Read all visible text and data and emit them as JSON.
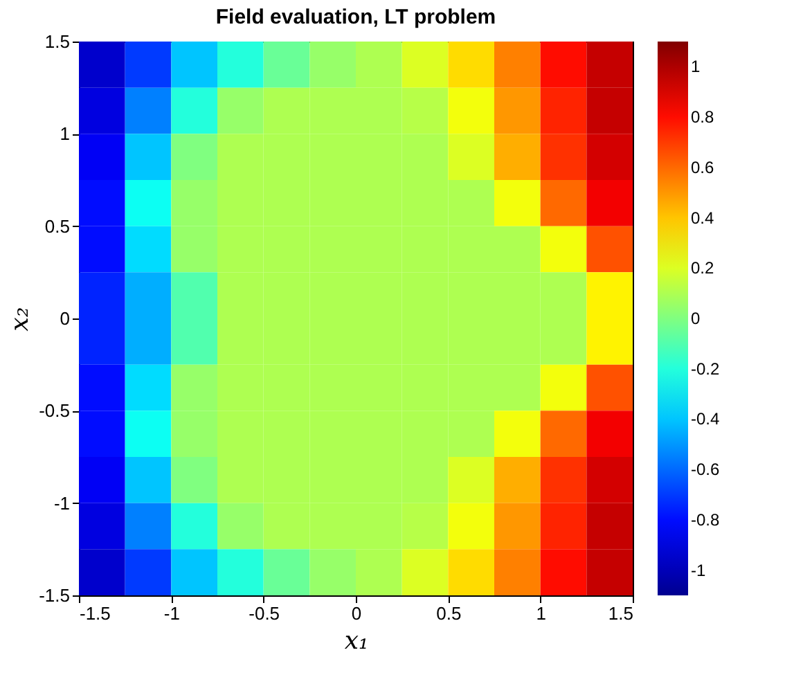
{
  "chart_data": {
    "type": "heatmap",
    "title": "Field evaluation, LT problem",
    "xlabel": "x₁",
    "ylabel": "x₂",
    "x": [
      -1.375,
      -1.125,
      -0.875,
      -0.625,
      -0.375,
      -0.125,
      0.125,
      0.375,
      0.625,
      0.875,
      1.125,
      1.375
    ],
    "y": [
      1.375,
      1.125,
      0.875,
      0.625,
      0.375,
      0.125,
      -0.125,
      -0.375,
      -0.625,
      -0.875,
      -1.125,
      -1.375
    ],
    "cells": [
      [
        -0.95,
        -0.7,
        -0.4,
        -0.2,
        -0.05,
        0.05,
        0.1,
        0.2,
        0.35,
        0.55,
        0.8,
        0.95
      ],
      [
        -0.9,
        -0.55,
        -0.2,
        0.05,
        0.1,
        0.1,
        0.1,
        0.12,
        0.25,
        0.5,
        0.75,
        0.95
      ],
      [
        -0.85,
        -0.4,
        0.0,
        0.1,
        0.1,
        0.1,
        0.1,
        0.1,
        0.2,
        0.45,
        0.72,
        0.92
      ],
      [
        -0.8,
        -0.25,
        0.05,
        0.1,
        0.1,
        0.1,
        0.1,
        0.1,
        0.1,
        0.25,
        0.6,
        0.85
      ],
      [
        -0.8,
        -0.35,
        0.05,
        0.1,
        0.1,
        0.1,
        0.1,
        0.1,
        0.1,
        0.1,
        0.25,
        0.65
      ],
      [
        -0.75,
        -0.45,
        -0.1,
        0.1,
        0.1,
        0.1,
        0.1,
        0.1,
        0.1,
        0.1,
        0.1,
        0.3
      ],
      [
        -0.75,
        -0.45,
        -0.1,
        0.1,
        0.1,
        0.1,
        0.1,
        0.1,
        0.1,
        0.1,
        0.1,
        0.3
      ],
      [
        -0.8,
        -0.35,
        0.05,
        0.1,
        0.1,
        0.1,
        0.1,
        0.1,
        0.1,
        0.1,
        0.25,
        0.65
      ],
      [
        -0.8,
        -0.25,
        0.05,
        0.1,
        0.1,
        0.1,
        0.1,
        0.1,
        0.1,
        0.25,
        0.6,
        0.85
      ],
      [
        -0.85,
        -0.4,
        0.0,
        0.1,
        0.1,
        0.1,
        0.1,
        0.1,
        0.2,
        0.45,
        0.72,
        0.92
      ],
      [
        -0.9,
        -0.55,
        -0.2,
        0.05,
        0.1,
        0.1,
        0.1,
        0.12,
        0.25,
        0.5,
        0.75,
        0.95
      ],
      [
        -0.95,
        -0.7,
        -0.4,
        -0.2,
        -0.05,
        0.05,
        0.1,
        0.2,
        0.35,
        0.55,
        0.8,
        0.95
      ]
    ],
    "colors": [
      "#00008f",
      "#0000ff",
      "#0080ff",
      "#00ffff",
      "#80ff80",
      "#ffff00",
      "#ff8000",
      "#ff0000",
      "#800000"
    ],
    "clim": [
      -1.1,
      1.1
    ],
    "cticks": [
      -1,
      -0.8,
      -0.6,
      -0.4,
      -0.2,
      0,
      0.2,
      0.4,
      0.6,
      0.8,
      1
    ],
    "xlim": [
      -1.5,
      1.5
    ],
    "xticks": [
      -1.5,
      -1,
      -0.5,
      0,
      0.5,
      1,
      1.5
    ],
    "ylim": [
      -1.5,
      1.5
    ],
    "yticks": [
      -1.5,
      -1,
      -0.5,
      0,
      0.5,
      1,
      1.5
    ]
  }
}
